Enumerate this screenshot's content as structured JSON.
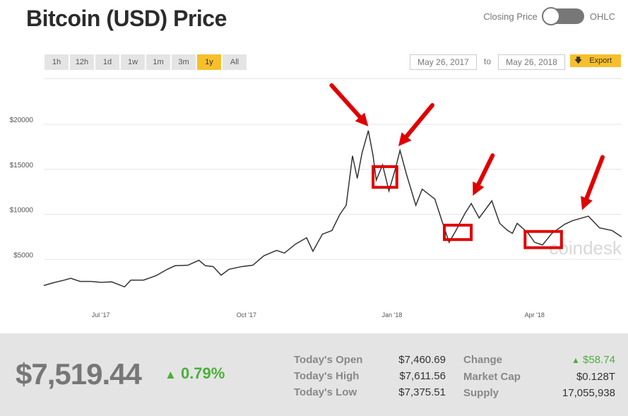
{
  "header": {
    "title": "Bitcoin (USD) Price",
    "toggle_left": "Closing Price",
    "toggle_right": "OHLC"
  },
  "ranges": [
    {
      "label": "1h"
    },
    {
      "label": "12h"
    },
    {
      "label": "1d"
    },
    {
      "label": "1w"
    },
    {
      "label": "1m"
    },
    {
      "label": "3m"
    },
    {
      "label": "1y",
      "active": true
    },
    {
      "label": "All"
    }
  ],
  "dates": {
    "from": "May 26, 2017",
    "to_label": "to",
    "to": "May 26, 2018",
    "export": "Export"
  },
  "colors": {
    "accent": "#f7bf2b",
    "up": "#4caf3a",
    "annotation": "#e00000",
    "line": "#333333"
  },
  "watermark": "coindesk",
  "chart_data": {
    "type": "line",
    "yticks": [
      {
        "value": 5000,
        "label": "$5000"
      },
      {
        "value": 10000,
        "label": "$10000"
      },
      {
        "value": 15000,
        "label": "$15000"
      },
      {
        "value": 20000,
        "label": "$20000"
      }
    ],
    "xticks": [
      {
        "date": "2017-07-01",
        "label": "Jul '17"
      },
      {
        "date": "2017-10-01",
        "label": "Oct '17"
      },
      {
        "date": "2018-01-01",
        "label": "Jan '18"
      },
      {
        "date": "2018-04-01",
        "label": "Apr '18"
      }
    ],
    "xlim": [
      "2017-05-26",
      "2018-05-26"
    ],
    "ylim": [
      0,
      20500
    ],
    "grid": true,
    "points": [
      [
        "2017-05-26",
        2100
      ],
      [
        "2017-06-01",
        2400
      ],
      [
        "2017-06-08",
        2700
      ],
      [
        "2017-06-12",
        2900
      ],
      [
        "2017-06-18",
        2550
      ],
      [
        "2017-06-25",
        2550
      ],
      [
        "2017-07-01",
        2450
      ],
      [
        "2017-07-08",
        2500
      ],
      [
        "2017-07-16",
        1950
      ],
      [
        "2017-07-20",
        2700
      ],
      [
        "2017-07-28",
        2700
      ],
      [
        "2017-08-05",
        3200
      ],
      [
        "2017-08-12",
        3900
      ],
      [
        "2017-08-17",
        4300
      ],
      [
        "2017-08-25",
        4350
      ],
      [
        "2017-09-01",
        4900
      ],
      [
        "2017-09-05",
        4300
      ],
      [
        "2017-09-10",
        4200
      ],
      [
        "2017-09-15",
        3250
      ],
      [
        "2017-09-20",
        3900
      ],
      [
        "2017-09-28",
        4200
      ],
      [
        "2017-10-05",
        4350
      ],
      [
        "2017-10-12",
        5400
      ],
      [
        "2017-10-20",
        6000
      ],
      [
        "2017-10-25",
        5700
      ],
      [
        "2017-11-01",
        6700
      ],
      [
        "2017-11-08",
        7400
      ],
      [
        "2017-11-12",
        5900
      ],
      [
        "2017-11-18",
        7800
      ],
      [
        "2017-11-24",
        8200
      ],
      [
        "2017-11-29",
        10000
      ],
      [
        "2017-12-03",
        11000
      ],
      [
        "2017-12-07",
        16500
      ],
      [
        "2017-12-10",
        14000
      ],
      [
        "2017-12-13",
        16800
      ],
      [
        "2017-12-17",
        19300
      ],
      [
        "2017-12-20",
        16500
      ],
      [
        "2017-12-22",
        13800
      ],
      [
        "2017-12-26",
        15500
      ],
      [
        "2017-12-30",
        12600
      ],
      [
        "2018-01-03",
        15000
      ],
      [
        "2018-01-06",
        17100
      ],
      [
        "2018-01-10",
        14500
      ],
      [
        "2018-01-16",
        11000
      ],
      [
        "2018-01-20",
        12800
      ],
      [
        "2018-01-28",
        11700
      ],
      [
        "2018-02-02",
        9000
      ],
      [
        "2018-02-06",
        6900
      ],
      [
        "2018-02-10",
        8100
      ],
      [
        "2018-02-16",
        10100
      ],
      [
        "2018-02-20",
        11200
      ],
      [
        "2018-02-25",
        9600
      ],
      [
        "2018-03-05",
        11500
      ],
      [
        "2018-03-10",
        9000
      ],
      [
        "2018-03-15",
        8200
      ],
      [
        "2018-03-18",
        7900
      ],
      [
        "2018-03-21",
        9000
      ],
      [
        "2018-03-28",
        7900
      ],
      [
        "2018-04-01",
        6900
      ],
      [
        "2018-04-06",
        6600
      ],
      [
        "2018-04-12",
        7900
      ],
      [
        "2018-04-20",
        8900
      ],
      [
        "2018-04-25",
        9300
      ],
      [
        "2018-05-05",
        9800
      ],
      [
        "2018-05-12",
        8500
      ],
      [
        "2018-05-20",
        8200
      ],
      [
        "2018-05-26",
        7500
      ]
    ]
  },
  "annotations": {
    "boxes": [
      [
        "2017-12-20",
        "2018-01-04",
        13000,
        15300
      ],
      [
        "2018-02-03",
        "2018-02-20",
        7200,
        8800
      ],
      [
        "2018-03-26",
        "2018-04-18",
        6300,
        8100
      ]
    ],
    "arrows": [
      [
        "2017-12-17",
        19300
      ],
      [
        "2018-01-05",
        17100
      ],
      [
        "2018-02-21",
        11600
      ],
      [
        "2018-05-01",
        10000
      ]
    ]
  },
  "summary": {
    "price": "$7,519.44",
    "change_pct": "0.79%",
    "left": [
      {
        "label": "Today's Open",
        "value": "$7,460.69"
      },
      {
        "label": "Today's High",
        "value": "$7,611.56"
      },
      {
        "label": "Today's Low",
        "value": "$7,375.51"
      }
    ],
    "right": [
      {
        "label": "Change",
        "value": "$58.74",
        "up": true
      },
      {
        "label": "Market Cap",
        "value": "$0.128T"
      },
      {
        "label": "Supply",
        "value": "17,055,938"
      }
    ]
  }
}
